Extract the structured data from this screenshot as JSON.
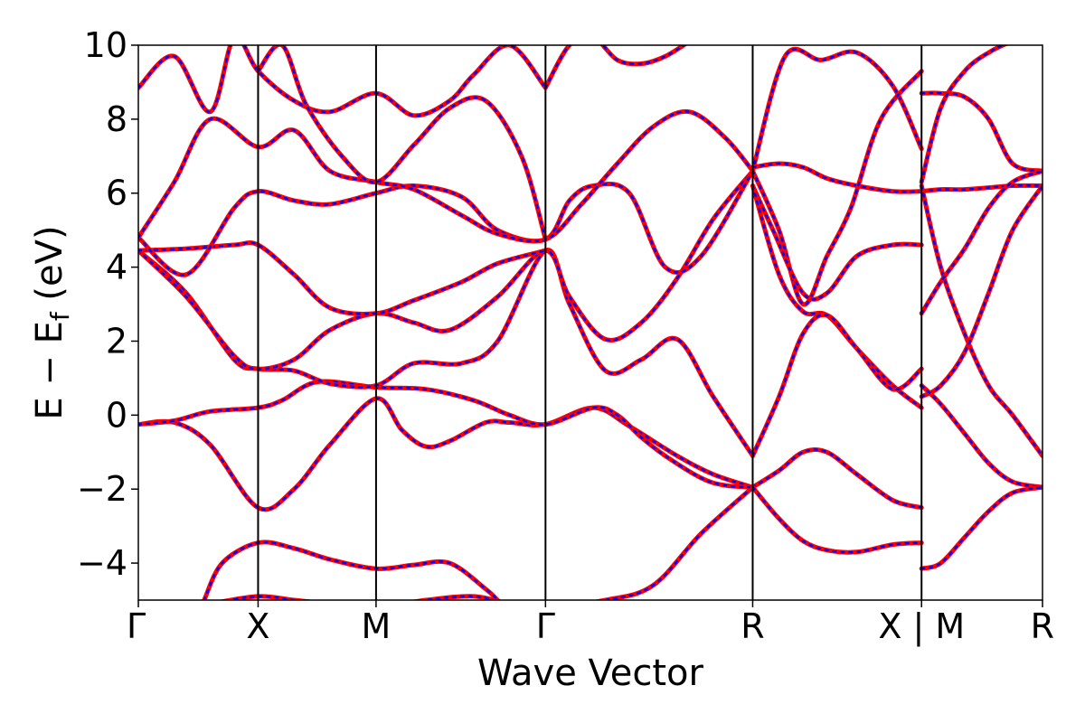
{
  "chart_data": {
    "type": "line",
    "xlabel": "Wave Vector",
    "ylabel": "E − E",
    "ylabel_sub": "f",
    "ylabel_unit": " (eV)",
    "ylim": [
      -5,
      10
    ],
    "yticks": [
      -4,
      -2,
      0,
      2,
      4,
      6,
      8,
      10
    ],
    "ytick_labels": [
      "−4",
      "−2",
      "0",
      "2",
      "4",
      "6",
      "8",
      "10"
    ],
    "kpath_labels": [
      "Γ",
      "X",
      "M",
      "Γ",
      "R",
      "X | M",
      "R"
    ],
    "kpath_x": [
      0,
      1.0,
      1.985,
      3.4,
      5.13,
      6.54,
      7.55
    ],
    "line_colors": {
      "band_solid": "#ff0000",
      "band_dashed": "#0000ff"
    },
    "bands": [
      {
        "x": [
          0,
          0.3,
          0.6,
          1.0,
          1.3,
          1.6,
          1.985,
          2.4,
          2.8,
          3.1,
          3.4,
          3.9,
          4.3,
          4.7,
          5.13
        ],
        "y": [
          -5.4,
          -5.3,
          -5.1,
          -4.9,
          -5.0,
          -5.1,
          -5.2,
          -5.0,
          -4.9,
          -5.1,
          -5.2,
          -5.0,
          -4.6,
          -3.2,
          -1.95
        ]
      },
      {
        "x": [
          0.55,
          0.7,
          1.0,
          1.3,
          1.6,
          1.985,
          2.3,
          2.6,
          2.9,
          3.0
        ],
        "y": [
          -5.0,
          -4.0,
          -3.45,
          -3.6,
          -3.9,
          -4.15,
          -4.05,
          -4.0,
          -4.7,
          -5.0
        ]
      },
      {
        "x": [
          0,
          0.3,
          0.6,
          1.0,
          1.3,
          1.6,
          1.985,
          2.2,
          2.4,
          2.6,
          2.9,
          3.1,
          3.4,
          3.8,
          4.1,
          4.5,
          4.8,
          5.13
        ],
        "y": [
          -0.25,
          -0.2,
          -0.8,
          -2.5,
          -2.0,
          -0.8,
          0.45,
          -0.4,
          -0.85,
          -0.7,
          -0.2,
          -0.2,
          -0.25,
          0.2,
          -0.3,
          -1.1,
          -1.6,
          -1.95
        ]
      },
      {
        "x": [
          0,
          0.3,
          0.6,
          1.0,
          1.2,
          1.5,
          1.985,
          2.4,
          2.8,
          3.1,
          3.4,
          3.8,
          4.0,
          4.2,
          4.4,
          4.7,
          4.9,
          5.13
        ],
        "y": [
          -0.25,
          -0.15,
          0.1,
          0.2,
          0.4,
          0.9,
          0.75,
          0.7,
          0.4,
          0.0,
          -0.25,
          0.2,
          0.0,
          -0.6,
          -1.1,
          -1.7,
          -1.9,
          -1.95
        ]
      },
      {
        "x": [
          0,
          0.4,
          0.8,
          1.0,
          1.3,
          1.6,
          1.985,
          2.3,
          2.7,
          3.0,
          3.4,
          3.6,
          3.9,
          4.2,
          4.5,
          4.8,
          5.13
        ],
        "y": [
          4.45,
          3.3,
          1.5,
          1.25,
          1.2,
          0.85,
          0.8,
          1.4,
          1.4,
          2.0,
          4.45,
          3.0,
          1.2,
          1.5,
          2.05,
          0.5,
          -1.1
        ]
      },
      {
        "x": [
          0,
          0.4,
          0.8,
          1.0,
          1.3,
          1.6,
          1.985,
          2.3,
          2.6,
          3.0,
          3.4,
          3.6,
          3.9,
          4.2,
          4.5,
          4.8,
          5.13
        ],
        "y": [
          4.45,
          3.2,
          1.6,
          1.25,
          1.5,
          2.3,
          2.75,
          2.5,
          2.3,
          3.2,
          4.45,
          3.2,
          2.05,
          2.5,
          3.7,
          5.3,
          6.6
        ]
      },
      {
        "x": [
          0,
          0.4,
          0.8,
          1.0,
          1.3,
          1.6,
          1.985,
          2.3,
          2.7,
          3.0,
          3.4
        ],
        "y": [
          4.45,
          4.5,
          4.6,
          4.6,
          3.8,
          2.9,
          2.75,
          3.1,
          3.6,
          4.1,
          4.45
        ]
      },
      {
        "x": [
          0,
          0.4,
          0.8,
          1.0,
          1.3,
          1.6,
          1.985,
          2.3,
          2.7,
          3.0,
          3.4,
          3.6,
          3.8,
          4.1,
          4.4,
          4.7,
          5.13
        ],
        "y": [
          4.8,
          3.8,
          5.6,
          6.05,
          5.8,
          5.7,
          6.0,
          6.2,
          5.9,
          5.0,
          4.75,
          5.8,
          6.2,
          6.0,
          4.0,
          4.3,
          6.6
        ]
      },
      {
        "x": [
          0,
          0.3,
          0.6,
          1.0,
          1.3,
          1.6,
          1.985,
          2.3,
          2.7,
          3.0,
          3.4,
          3.7,
          4.0,
          4.3,
          4.6,
          4.9,
          5.13
        ],
        "y": [
          4.8,
          6.3,
          8.0,
          7.25,
          7.7,
          6.6,
          6.3,
          6.1,
          5.4,
          4.9,
          4.75,
          5.7,
          6.8,
          7.8,
          8.2,
          7.5,
          6.6
        ]
      },
      {
        "x": [
          0,
          0.3,
          0.6,
          0.8,
          1.0,
          1.3,
          1.6,
          1.985,
          2.3,
          2.6,
          2.8,
          3.1,
          3.4
        ],
        "y": [
          8.85,
          9.7,
          8.2,
          10.2,
          9.3,
          8.5,
          8.2,
          8.7,
          8.1,
          8.5,
          9.2,
          10.0,
          8.85
        ]
      },
      {
        "x": [
          1.0,
          1.2,
          1.4,
          1.7,
          1.985,
          2.3,
          2.6,
          2.9,
          3.2,
          3.4
        ],
        "y": [
          9.3,
          10.0,
          8.4,
          7.0,
          6.3,
          7.3,
          8.3,
          8.5,
          7.0,
          4.75
        ]
      },
      {
        "x": [
          3.4,
          3.6,
          3.8,
          4.0,
          4.2,
          4.4,
          4.6
        ],
        "y": [
          8.85,
          10.0,
          10.2,
          9.6,
          9.5,
          9.7,
          10.1
        ]
      },
      {
        "x": [
          5.13,
          5.4,
          5.7,
          6.0,
          6.3,
          6.54
        ],
        "y": [
          6.6,
          9.7,
          9.6,
          9.8,
          8.9,
          7.2
        ]
      },
      {
        "x": [
          5.13,
          5.35,
          5.55,
          5.75,
          6.0,
          6.3,
          6.54
        ],
        "y": [
          6.7,
          6.8,
          6.7,
          6.4,
          6.2,
          6.05,
          6.05
        ]
      },
      {
        "x": [
          5.13,
          5.35,
          5.55,
          5.75,
          5.95,
          6.2,
          6.54
        ],
        "y": [
          6.6,
          5.0,
          3.0,
          4.3,
          5.6,
          8.0,
          9.3
        ]
      },
      {
        "x": [
          5.13,
          5.3,
          5.55,
          5.75,
          6.0,
          6.3,
          6.54
        ],
        "y": [
          6.2,
          5.0,
          3.3,
          3.3,
          4.3,
          4.6,
          4.6
        ]
      },
      {
        "x": [
          5.13,
          5.35,
          5.55,
          5.75,
          6.0,
          6.3,
          6.54
        ],
        "y": [
          6.2,
          3.8,
          2.8,
          2.7,
          1.8,
          0.8,
          0.2
        ]
      },
      {
        "x": [
          5.13,
          5.35,
          5.55,
          5.75,
          6.0,
          6.3,
          6.54
        ],
        "y": [
          -1.95,
          -1.5,
          -1.0,
          -1.0,
          -1.6,
          -2.3,
          -2.5
        ]
      },
      {
        "x": [
          5.13,
          5.35,
          5.55,
          5.75,
          6.0,
          6.3,
          6.54
        ],
        "y": [
          -1.95,
          -2.8,
          -3.4,
          -3.65,
          -3.7,
          -3.5,
          -3.45
        ]
      },
      {
        "x": [
          5.13,
          5.35,
          5.55,
          5.75,
          6.0,
          6.3,
          6.54
        ],
        "y": [
          -1.1,
          0.5,
          2.2,
          2.7,
          1.8,
          0.7,
          1.25
        ]
      },
      {
        "x": [
          6.54,
          6.7,
          6.9,
          7.1,
          7.3,
          7.55
        ],
        "y": [
          8.7,
          8.7,
          8.6,
          8.0,
          6.8,
          6.6
        ]
      },
      {
        "x": [
          6.54,
          6.7,
          6.9,
          7.1,
          7.3,
          7.55
        ],
        "y": [
          6.05,
          6.1,
          6.1,
          6.15,
          6.2,
          6.2
        ]
      },
      {
        "x": [
          6.54,
          6.7,
          6.9,
          7.1,
          7.3,
          7.55
        ],
        "y": [
          6.2,
          4.0,
          2.2,
          0.8,
          0.0,
          -1.1
        ]
      },
      {
        "x": [
          6.54,
          6.7,
          6.9,
          7.1,
          7.3,
          7.55
        ],
        "y": [
          2.75,
          3.6,
          4.5,
          5.6,
          6.3,
          6.6
        ]
      },
      {
        "x": [
          6.54,
          6.7,
          6.9,
          7.1,
          7.3,
          7.55
        ],
        "y": [
          0.5,
          0.8,
          1.7,
          3.3,
          5.0,
          6.2
        ]
      },
      {
        "x": [
          6.54,
          6.7,
          6.9,
          7.1,
          7.3,
          7.55
        ],
        "y": [
          0.8,
          0.3,
          -0.5,
          -1.3,
          -1.8,
          -1.95
        ]
      },
      {
        "x": [
          6.54,
          6.7,
          6.9,
          7.1,
          7.3,
          7.55
        ],
        "y": [
          -4.15,
          -4.0,
          -3.3,
          -2.6,
          -2.1,
          -1.95
        ]
      },
      {
        "x": [
          6.54,
          6.7,
          6.9,
          7.1,
          7.3,
          7.55
        ],
        "y": [
          6.3,
          8.3,
          9.3,
          9.8,
          10.1,
          10.3
        ]
      }
    ]
  }
}
